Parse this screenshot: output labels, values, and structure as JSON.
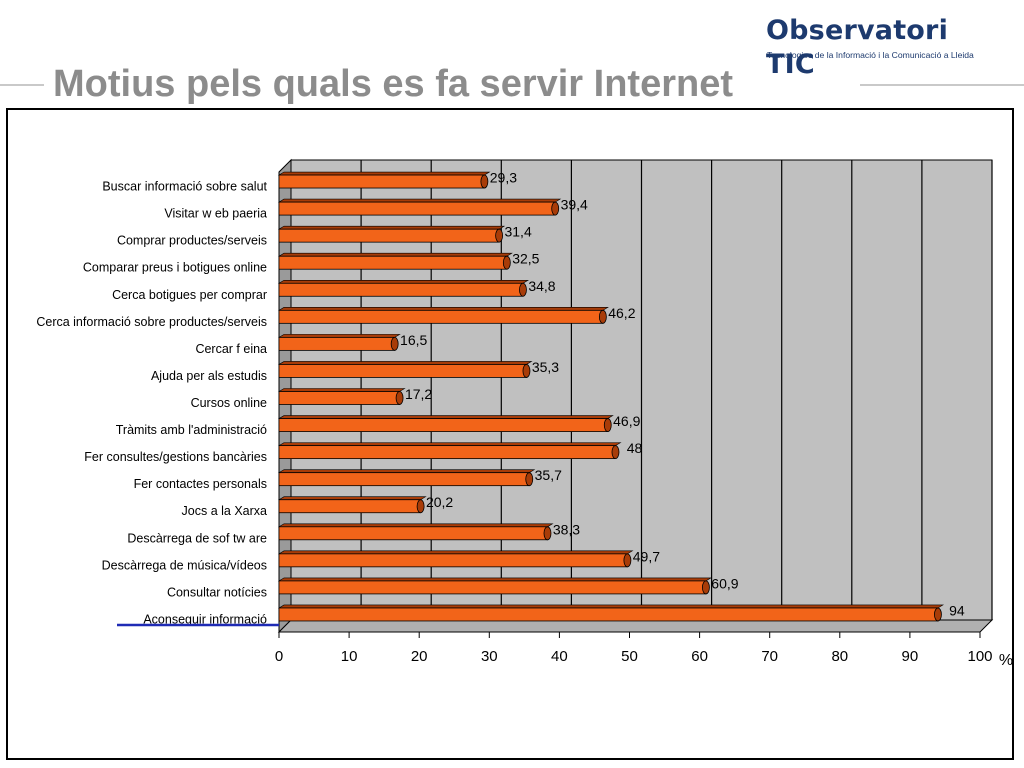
{
  "logo": {
    "title": "Observatori TIC",
    "subtitle": "Tecnologies de la Informació i la Comunicació a Lleida"
  },
  "title": "Motius pels quals es fa servir Internet",
  "colors": {
    "bar": "#f26419",
    "bar_dark": "#a83c08",
    "plot_bg": "#c0c0c0",
    "plot_side": "#9a9a9a",
    "title": "#8c8c8c",
    "logo": "#1d3a6e",
    "underline": "#1f2bb5"
  },
  "chart_data": {
    "type": "bar",
    "orientation": "horizontal",
    "style": "3d",
    "title": "",
    "xlabel": "",
    "ylabel": "",
    "unit_label": "%",
    "categories": [
      "Buscar informació sobre salut",
      "Visitar w eb paeria",
      "Comprar productes/serveis",
      "Comparar preus i botigues online",
      "Cerca botigues per comprar",
      "Cerca informació sobre productes/serveis",
      "Cercar f eina",
      "Ajuda per als estudis",
      "Cursos online",
      "Tràmits amb l'administració",
      "Fer consultes/gestions bancàries",
      "Fer contactes personals",
      "Jocs a la Xarxa",
      "Descàrrega de sof tw are",
      "Descàrrega de música/vídeos",
      "Consultar notícies",
      "Aconseguir informació"
    ],
    "values": [
      29.3,
      39.4,
      31.4,
      32.5,
      34.8,
      46.2,
      16.5,
      35.3,
      17.2,
      46.9,
      48,
      35.7,
      20.2,
      38.3,
      49.7,
      60.9,
      94
    ],
    "value_labels": [
      "29,3",
      "39,4",
      "31,4",
      "32,5",
      "34,8",
      "46,2",
      "16,5",
      "35,3",
      "17,2",
      "46,9",
      "48",
      "35,7",
      "20,2",
      "38,3",
      "49,7",
      "60,9",
      "94"
    ],
    "xlim": [
      0,
      100
    ],
    "xticks": [
      0,
      10,
      20,
      30,
      40,
      50,
      60,
      70,
      80,
      90,
      100
    ],
    "xtick_labels": [
      "0",
      "10",
      "20",
      "30",
      "40",
      "50",
      "60",
      "70",
      "80",
      "90",
      "100"
    ],
    "grid": true,
    "legend": "none"
  }
}
